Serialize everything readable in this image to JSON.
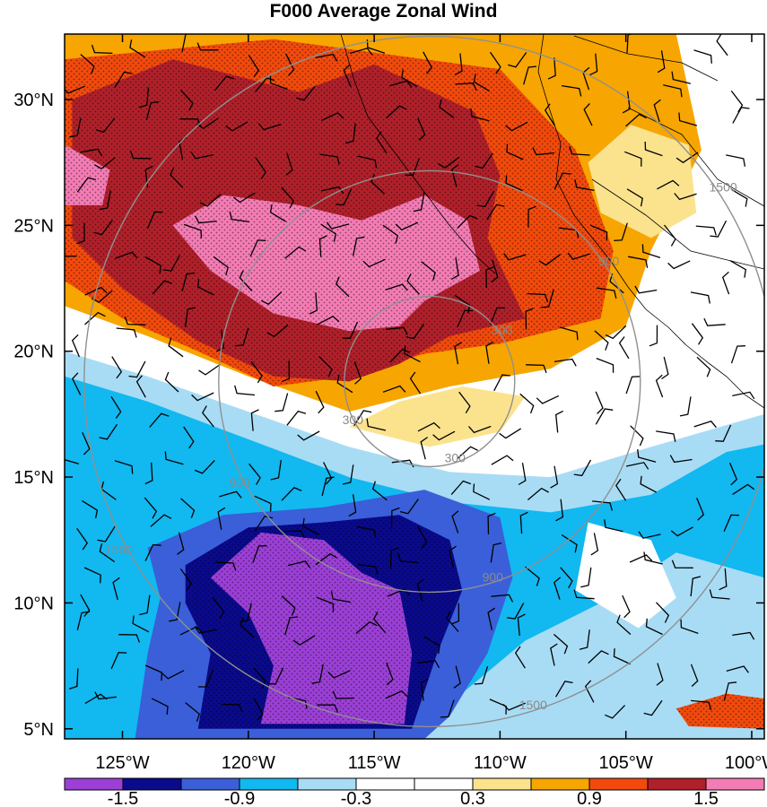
{
  "chart_data": {
    "type": "heatmap",
    "title": "F000 Average Zonal Wind",
    "xlabel": "",
    "ylabel": "",
    "x_ticks": [
      "125°W",
      "120°W",
      "115°W",
      "110°W",
      "105°W",
      "100°W"
    ],
    "x_tick_values": [
      -125,
      -120,
      -115,
      -110,
      -105,
      -100
    ],
    "y_ticks": [
      "30°N",
      "25°N",
      "20°N",
      "15°N",
      "10°N",
      "5°N"
    ],
    "y_tick_values": [
      30,
      25,
      20,
      15,
      10,
      5
    ],
    "xlim": [
      -127.3,
      -99.5
    ],
    "ylim": [
      4.6,
      32.6
    ],
    "colorbar": {
      "labels": [
        "-1.5",
        "-0.9",
        "-0.3",
        "0.3",
        "0.9",
        "1.5"
      ],
      "label_values": [
        -1.5,
        -0.9,
        -0.3,
        0.3,
        0.9,
        1.5
      ],
      "bins": [
        {
          "color": "#9b3fd6"
        },
        {
          "color": "#0a0a8c"
        },
        {
          "color": "#3a5fd8"
        },
        {
          "color": "#12b8f0"
        },
        {
          "color": "#a8dcf5"
        },
        {
          "color": "#ffffff"
        },
        {
          "color": "#ffffff"
        },
        {
          "color": "#fbe38e"
        },
        {
          "color": "#f7a500"
        },
        {
          "color": "#f24a0c"
        },
        {
          "color": "#b0202a"
        },
        {
          "color": "#f47cb4"
        }
      ]
    },
    "range_ring_labels": [
      "300",
      "900",
      "1500"
    ],
    "range_ring_center": [
      -112.8,
      18.8
    ],
    "regions": [
      {
        "value": 1.1,
        "color": "#f7a500",
        "points": [
          [
            -127.3,
            32.6
          ],
          [
            -103,
            32.6
          ],
          [
            -102,
            28
          ],
          [
            -104,
            24
          ],
          [
            -105,
            21
          ],
          [
            -108,
            19.3
          ],
          [
            -112,
            18.6
          ],
          [
            -116,
            17.6
          ],
          [
            -120,
            19
          ],
          [
            -124,
            20.6
          ],
          [
            -127.3,
            21.8
          ]
        ]
      },
      {
        "value": 1.3,
        "color": "#f24a0c",
        "points": [
          [
            -127.3,
            31.6
          ],
          [
            -119,
            32.4
          ],
          [
            -110,
            31.2
          ],
          [
            -107,
            28
          ],
          [
            -105.5,
            24
          ],
          [
            -106,
            21.3
          ],
          [
            -110,
            20.3
          ],
          [
            -113,
            19.9
          ],
          [
            -116,
            19
          ],
          [
            -119,
            18.6
          ],
          [
            -122,
            20
          ],
          [
            -125,
            21.3
          ],
          [
            -127.3,
            22.8
          ]
        ]
      },
      {
        "value": 1.5,
        "color": "#b0202a",
        "points": [
          [
            -127,
            30
          ],
          [
            -123,
            31.6
          ],
          [
            -118,
            30.3
          ],
          [
            -115,
            31.4
          ],
          [
            -111,
            29.5
          ],
          [
            -110,
            27
          ],
          [
            -110.5,
            24.5
          ],
          [
            -109,
            21.3
          ],
          [
            -112,
            20.6
          ],
          [
            -114,
            19.5
          ],
          [
            -116,
            18.8
          ],
          [
            -119,
            19
          ],
          [
            -122,
            20.4
          ],
          [
            -125,
            22.5
          ],
          [
            -127,
            24.5
          ]
        ]
      },
      {
        "value": 1.8,
        "color": "#f47cb4",
        "points": [
          [
            -123,
            25
          ],
          [
            -121.5,
            23.2
          ],
          [
            -119,
            21.5
          ],
          [
            -116,
            20.8
          ],
          [
            -114,
            21
          ],
          [
            -113,
            22
          ],
          [
            -110.8,
            23.2
          ],
          [
            -111.3,
            25.2
          ],
          [
            -113,
            26.2
          ],
          [
            -115.5,
            25.2
          ],
          [
            -118,
            25.8
          ],
          [
            -121,
            26.2
          ]
        ]
      },
      {
        "value": 1.8,
        "color": "#f47cb4",
        "points": [
          [
            -127.3,
            28.2
          ],
          [
            -125.5,
            27.2
          ],
          [
            -125.8,
            25.8
          ],
          [
            -127.3,
            25.8
          ]
        ]
      },
      {
        "value": 0.5,
        "color": "#fbe38e",
        "points": [
          [
            -106.5,
            27.5
          ],
          [
            -104.8,
            29
          ],
          [
            -102.5,
            28.2
          ],
          [
            -102.2,
            25.5
          ],
          [
            -104,
            24.5
          ],
          [
            -106,
            25.5
          ]
        ]
      },
      {
        "value": 0.5,
        "color": "#fbe38e",
        "points": [
          [
            -116,
            17
          ],
          [
            -112.8,
            16.2
          ],
          [
            -110,
            16.8
          ],
          [
            -109,
            18.2
          ],
          [
            -111.5,
            18.6
          ],
          [
            -114,
            18
          ]
        ]
      },
      {
        "value": -0.5,
        "color": "#a8dcf5",
        "points": [
          [
            -127.3,
            20
          ],
          [
            -124,
            19
          ],
          [
            -120,
            17.6
          ],
          [
            -116,
            16.2
          ],
          [
            -112,
            15.2
          ],
          [
            -108,
            15
          ],
          [
            -104,
            16.2
          ],
          [
            -99.5,
            17.5
          ],
          [
            -99.5,
            4.6
          ],
          [
            -127.3,
            4.6
          ]
        ]
      },
      {
        "value": -0.8,
        "color": "#12b8f0",
        "points": [
          [
            -127.3,
            19
          ],
          [
            -124,
            18
          ],
          [
            -120,
            16.5
          ],
          [
            -116,
            15
          ],
          [
            -112,
            14
          ],
          [
            -108,
            13.6
          ],
          [
            -104,
            14.3
          ],
          [
            -101,
            16
          ],
          [
            -99.5,
            16.3
          ],
          [
            -99.5,
            11
          ],
          [
            -103,
            12
          ],
          [
            -106,
            10
          ],
          [
            -109,
            8.5
          ],
          [
            -112,
            6
          ],
          [
            -116,
            4.6
          ],
          [
            -127.3,
            4.6
          ]
        ]
      },
      {
        "value": 0.3,
        "color": "#ffffff",
        "points": [
          [
            -106.5,
            13.2
          ],
          [
            -104,
            12.5
          ],
          [
            -103,
            10.2
          ],
          [
            -104.5,
            9
          ],
          [
            -107,
            10.5
          ]
        ]
      },
      {
        "value": -1.1,
        "color": "#3a5fd8",
        "points": [
          [
            -124,
            12.2
          ],
          [
            -121,
            13.5
          ],
          [
            -117,
            13.8
          ],
          [
            -113,
            14.5
          ],
          [
            -110,
            13.4
          ],
          [
            -109.5,
            11
          ],
          [
            -110.5,
            8
          ],
          [
            -112,
            5.5
          ],
          [
            -113,
            4.6
          ],
          [
            -124.5,
            4.6
          ],
          [
            -124,
            8
          ],
          [
            -123.5,
            10.2
          ]
        ]
      },
      {
        "value": -1.3,
        "color": "#0a0a8c",
        "points": [
          [
            -122.5,
            11.5
          ],
          [
            -120,
            13
          ],
          [
            -117,
            13.2
          ],
          [
            -114,
            13.5
          ],
          [
            -112,
            12.5
          ],
          [
            -111.5,
            10.5
          ],
          [
            -112.5,
            8
          ],
          [
            -113.5,
            5
          ],
          [
            -122,
            5
          ],
          [
            -121.5,
            8
          ],
          [
            -122.5,
            10
          ]
        ]
      },
      {
        "value": -1.6,
        "color": "#9b3fd6",
        "points": [
          [
            -121.5,
            11
          ],
          [
            -119.5,
            12.8
          ],
          [
            -117,
            12.5
          ],
          [
            -115.5,
            11.2
          ],
          [
            -114,
            10.5
          ],
          [
            -113.5,
            8
          ],
          [
            -113.8,
            5.2
          ],
          [
            -119.5,
            5.2
          ],
          [
            -119,
            7.5
          ],
          [
            -120,
            9.6
          ]
        ]
      },
      {
        "value": 1.2,
        "color": "#f24a0c",
        "points": [
          [
            -103,
            5.8
          ],
          [
            -101,
            6.4
          ],
          [
            -99.5,
            6.2
          ],
          [
            -99.5,
            5
          ],
          [
            -102.5,
            5.1
          ]
        ]
      }
    ]
  }
}
